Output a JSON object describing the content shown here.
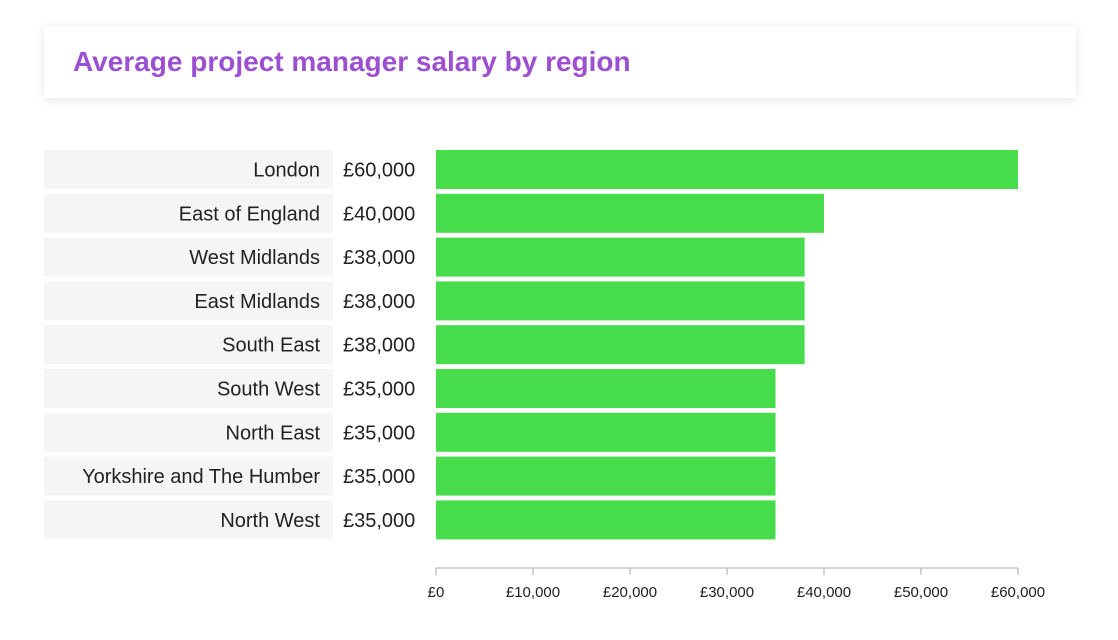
{
  "chart_data": {
    "type": "bar",
    "orientation": "horizontal",
    "title": "Average project manager salary by region",
    "categories": [
      "London",
      "East of England",
      "West Midlands",
      "East Midlands",
      "South East",
      "South West",
      "North East",
      "Yorkshire and The Humber",
      "North West"
    ],
    "values": [
      60000,
      40000,
      38000,
      38000,
      38000,
      35000,
      35000,
      35000,
      35000
    ],
    "value_labels": [
      "£60,000",
      "£40,000",
      "£38,000",
      "£38,000",
      "£38,000",
      "£35,000",
      "£35,000",
      "£35,000",
      "£35,000"
    ],
    "x_ticks": [
      0,
      10000,
      20000,
      30000,
      40000,
      50000,
      60000
    ],
    "x_tick_labels": [
      "£0",
      "£10,000",
      "£20,000",
      "£30,000",
      "£40,000",
      "£50,000",
      "£60,000"
    ],
    "xlim": [
      0,
      60000
    ],
    "xlabel": "",
    "ylabel": "",
    "grid": false,
    "legend": "none",
    "colors": {
      "bar": "#46dc4b",
      "title": "#9c4fd0",
      "row_background": "#f5f5f5",
      "axis": "#aaaaaa",
      "text": "#222222"
    }
  }
}
